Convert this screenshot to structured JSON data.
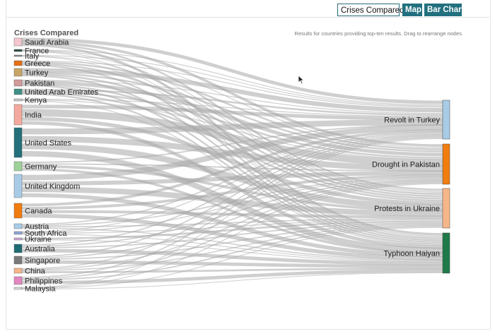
{
  "toolbar": {
    "crises_label": "Crises Compared",
    "map_label": "Map",
    "bar_label": "Bar Chart"
  },
  "heading": "Crises Compared",
  "note": "Results for countries providing top-ten results. Drag to rearrange nodes.",
  "countries": [
    {
      "label": "Saudi Arabia",
      "color": "#f4c6cf"
    },
    {
      "label": "France",
      "color": "#2b4a3e"
    },
    {
      "label": "Italy",
      "color": "#888888"
    },
    {
      "label": "Greece",
      "color": "#e66f12"
    },
    {
      "label": "Turkey",
      "color": "#c6a566"
    },
    {
      "label": "Pakistan",
      "color": "#d39a9a"
    },
    {
      "label": "United Arab Emirates",
      "color": "#3f8f86"
    },
    {
      "label": "Kenya",
      "color": "#c7c7c7"
    },
    {
      "label": "India",
      "color": "#f3a99d"
    },
    {
      "label": "United States",
      "color": "#23707a"
    },
    {
      "label": "Germany",
      "color": "#9fd29a"
    },
    {
      "label": "United Kingdom",
      "color": "#a9cce6"
    },
    {
      "label": "Canada",
      "color": "#f07d10"
    },
    {
      "label": "Austria",
      "color": "#a9cce6"
    },
    {
      "label": "South Africa",
      "color": "#8fa7d4"
    },
    {
      "label": "Ukraine",
      "color": "#c9a6d6"
    },
    {
      "label": "Australia",
      "color": "#1f6b73"
    },
    {
      "label": "Singapore",
      "color": "#7a7a7a"
    },
    {
      "label": "China",
      "color": "#f7b68a"
    },
    {
      "label": "Philippines",
      "color": "#e386c0"
    },
    {
      "label": "Malaysia",
      "color": "#d8d8d8"
    }
  ],
  "crises": [
    {
      "label": "Revolt in Turkey",
      "color": "#a9cce6"
    },
    {
      "label": "Drought in Pakistan",
      "color": "#f07d10"
    },
    {
      "label": "Protests in Ukraine",
      "color": "#f7b68a"
    },
    {
      "label": "Typhoon Haiyan",
      "color": "#1f7a4a"
    }
  ]
}
